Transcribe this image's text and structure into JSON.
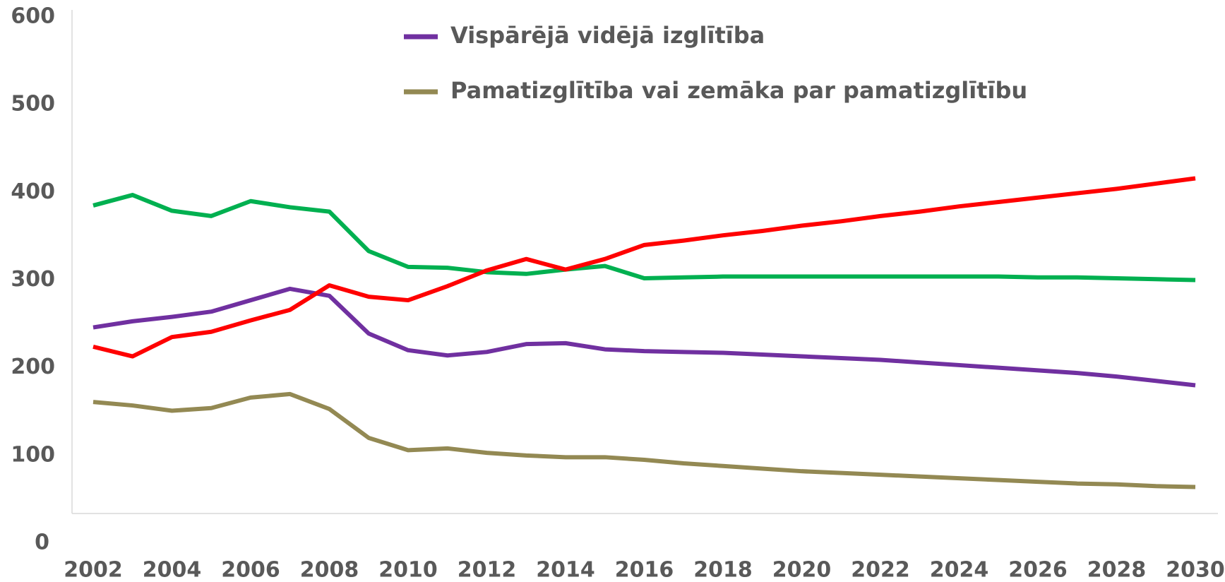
{
  "chart_data": {
    "type": "line",
    "x": [
      2002,
      2003,
      2004,
      2005,
      2006,
      2007,
      2008,
      2009,
      2010,
      2011,
      2012,
      2013,
      2014,
      2015,
      2016,
      2017,
      2018,
      2019,
      2020,
      2021,
      2022,
      2023,
      2024,
      2025,
      2026,
      2027,
      2028,
      2029,
      2030
    ],
    "series": [
      {
        "name": "Vispārējā vidējā izglītība",
        "color": "#7030a0",
        "values": [
          246,
          253,
          258,
          264,
          277,
          290,
          282,
          239,
          220,
          214,
          218,
          227,
          228,
          221,
          219,
          218,
          217,
          215,
          213,
          211,
          209,
          206,
          203,
          200,
          197,
          194,
          190,
          185,
          180
        ]
      },
      {
        "name": "Pamatizglītība vai zemāka par pamatizglītību",
        "color": "#938953",
        "values": [
          161,
          157,
          151,
          154,
          166,
          170,
          153,
          120,
          106,
          108,
          103,
          100,
          98,
          98,
          95,
          91,
          88,
          85,
          82,
          80,
          78,
          76,
          74,
          72,
          70,
          68,
          67,
          65,
          64
        ]
      },
      {
        "color": "#00b050",
        "values": [
          385,
          397,
          379,
          373,
          390,
          383,
          378,
          333,
          315,
          314,
          309,
          307,
          312,
          316,
          302,
          303,
          304,
          304,
          304,
          304,
          304,
          304,
          304,
          304,
          303,
          303,
          302,
          301,
          300
        ]
      },
      {
        "color": "#ff0000",
        "values": [
          224,
          213,
          235,
          241,
          254,
          266,
          294,
          281,
          277,
          293,
          311,
          324,
          312,
          324,
          340,
          345,
          351,
          356,
          362,
          367,
          373,
          378,
          384,
          389,
          394,
          399,
          404,
          410,
          416
        ]
      }
    ],
    "xlim": [
      2002,
      2030
    ],
    "xticks": [
      2002,
      2004,
      2006,
      2008,
      2010,
      2012,
      2014,
      2016,
      2018,
      2020,
      2022,
      2024,
      2026,
      2028,
      2030
    ],
    "ylim": [
      0,
      600
    ],
    "yticks": [
      0,
      100,
      200,
      300,
      400,
      500,
      600
    ]
  }
}
